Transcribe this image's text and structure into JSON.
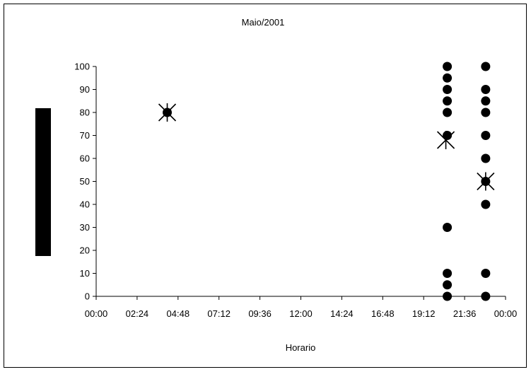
{
  "chart_data": {
    "type": "scatter",
    "title": "Maio/2001",
    "xlabel": "Horario",
    "ylabel": "",
    "xlim_minutes": [
      0,
      1440
    ],
    "ylim": [
      0,
      100
    ],
    "x_ticks": [
      "00:00",
      "02:24",
      "04:48",
      "07:12",
      "09:36",
      "12:00",
      "14:24",
      "16:48",
      "19:12",
      "21:36",
      "00:00"
    ],
    "y_ticks": [
      "0",
      "10",
      "20",
      "30",
      "40",
      "50",
      "60",
      "70",
      "80",
      "90",
      "100"
    ],
    "grid": false,
    "legend": "none",
    "series": [
      {
        "marker": "circle",
        "points": [
          {
            "x": "04:10",
            "y": 80
          },
          {
            "x": "20:35",
            "y": 100
          },
          {
            "x": "20:35",
            "y": 95
          },
          {
            "x": "20:35",
            "y": 90
          },
          {
            "x": "20:35",
            "y": 85
          },
          {
            "x": "20:35",
            "y": 80
          },
          {
            "x": "20:35",
            "y": 70
          },
          {
            "x": "20:35",
            "y": 30
          },
          {
            "x": "20:35",
            "y": 10
          },
          {
            "x": "20:35",
            "y": 5
          },
          {
            "x": "20:35",
            "y": 0
          },
          {
            "x": "22:50",
            "y": 100
          },
          {
            "x": "22:50",
            "y": 90
          },
          {
            "x": "22:50",
            "y": 85
          },
          {
            "x": "22:50",
            "y": 80
          },
          {
            "x": "22:50",
            "y": 70
          },
          {
            "x": "22:50",
            "y": 60
          },
          {
            "x": "22:50",
            "y": 50
          },
          {
            "x": "22:50",
            "y": 40
          },
          {
            "x": "22:50",
            "y": 10
          },
          {
            "x": "22:50",
            "y": 0
          }
        ]
      },
      {
        "marker": "x-star",
        "points": [
          {
            "x": "04:10",
            "y": 80
          },
          {
            "x": "20:30",
            "y": 68
          },
          {
            "x": "22:50",
            "y": 50
          }
        ]
      }
    ]
  },
  "colors": {
    "marker": "#000000",
    "axis": "#000000",
    "left_bar": "#000000"
  }
}
